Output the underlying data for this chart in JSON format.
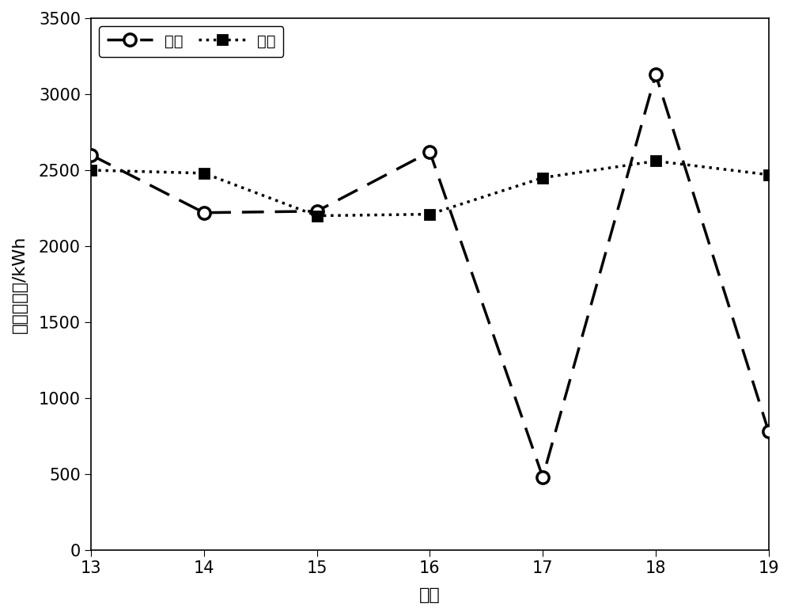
{
  "x": [
    13,
    14,
    15,
    16,
    17,
    18,
    19
  ],
  "pv_y": [
    2600,
    2220,
    2230,
    2620,
    480,
    3130,
    780
  ],
  "load_y": [
    2500,
    2480,
    2200,
    2210,
    2450,
    2560,
    2470
  ],
  "xlabel": "天数",
  "ylabel": "能量预测值/kWh",
  "pv_label": "光伏",
  "load_label": "负荷",
  "xlim": [
    13,
    19
  ],
  "ylim": [
    0,
    3500
  ],
  "yticks": [
    0,
    500,
    1000,
    1500,
    2000,
    2500,
    3000,
    3500
  ],
  "xticks": [
    13,
    14,
    15,
    16,
    17,
    18,
    19
  ],
  "line_color": "#000000",
  "bg_color": "#ffffff",
  "label_fontsize": 16,
  "tick_fontsize": 15,
  "legend_fontsize": 14
}
